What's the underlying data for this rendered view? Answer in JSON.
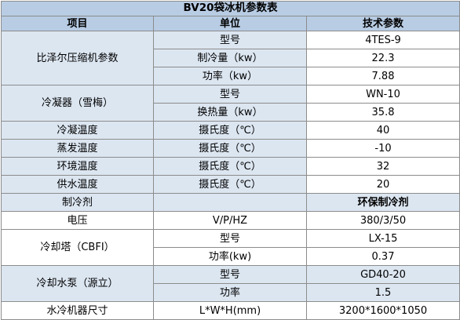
{
  "colors": {
    "title_bg": "#b8cce4",
    "label_bg": "#dce6f1",
    "value_bg": "#ffffff",
    "border": "#8c8c8c"
  },
  "title": "BV20袋冰机参数表",
  "header": {
    "item": "项目",
    "unit": "单位",
    "spec": "技术参数"
  },
  "compressor": {
    "name": "比泽尔压缩机参数",
    "rows": [
      {
        "unit": "型号",
        "value": "4TES-9"
      },
      {
        "unit": "制冷量（kw）",
        "value": "22.3"
      },
      {
        "unit": "功率（kw）",
        "value": "7.88"
      }
    ]
  },
  "condenser": {
    "name": "冷凝器（雪梅）",
    "rows": [
      {
        "unit": "型号",
        "value": "WN-10"
      },
      {
        "unit": "换热量（kw）",
        "value": "35.8"
      }
    ]
  },
  "temps": [
    {
      "name": "冷凝温度",
      "unit": "摄氏度（℃）",
      "value": "40"
    },
    {
      "name": "蒸发温度",
      "unit": "摄氏度（℃）",
      "value": "-10"
    },
    {
      "name": "环境温度",
      "unit": "摄氏度（℃）",
      "value": "32"
    },
    {
      "name": "供水温度",
      "unit": "摄氏度（℃）",
      "value": "20"
    }
  ],
  "refrigerant": {
    "name": "制冷剂",
    "unit": "",
    "value": "环保制冷剂"
  },
  "power": {
    "name": "电压",
    "unit": "V/P/HZ",
    "value": "380/3/50"
  },
  "cooling_tower": {
    "name": "冷却塔（CBFI）",
    "rows": [
      {
        "unit": "型号",
        "value": "LX-15"
      },
      {
        "unit": "功率(kw)",
        "value": "0.37"
      }
    ]
  },
  "pump": {
    "name": "冷却水泵（源立）",
    "rows": [
      {
        "unit": "型号",
        "value": "GD40-20"
      },
      {
        "unit": "功率",
        "value": "1.5"
      }
    ]
  },
  "dimensions": {
    "name": "水冷机器尺寸",
    "unit": "L*W*H(mm)",
    "value": "3200*1600*1050"
  }
}
